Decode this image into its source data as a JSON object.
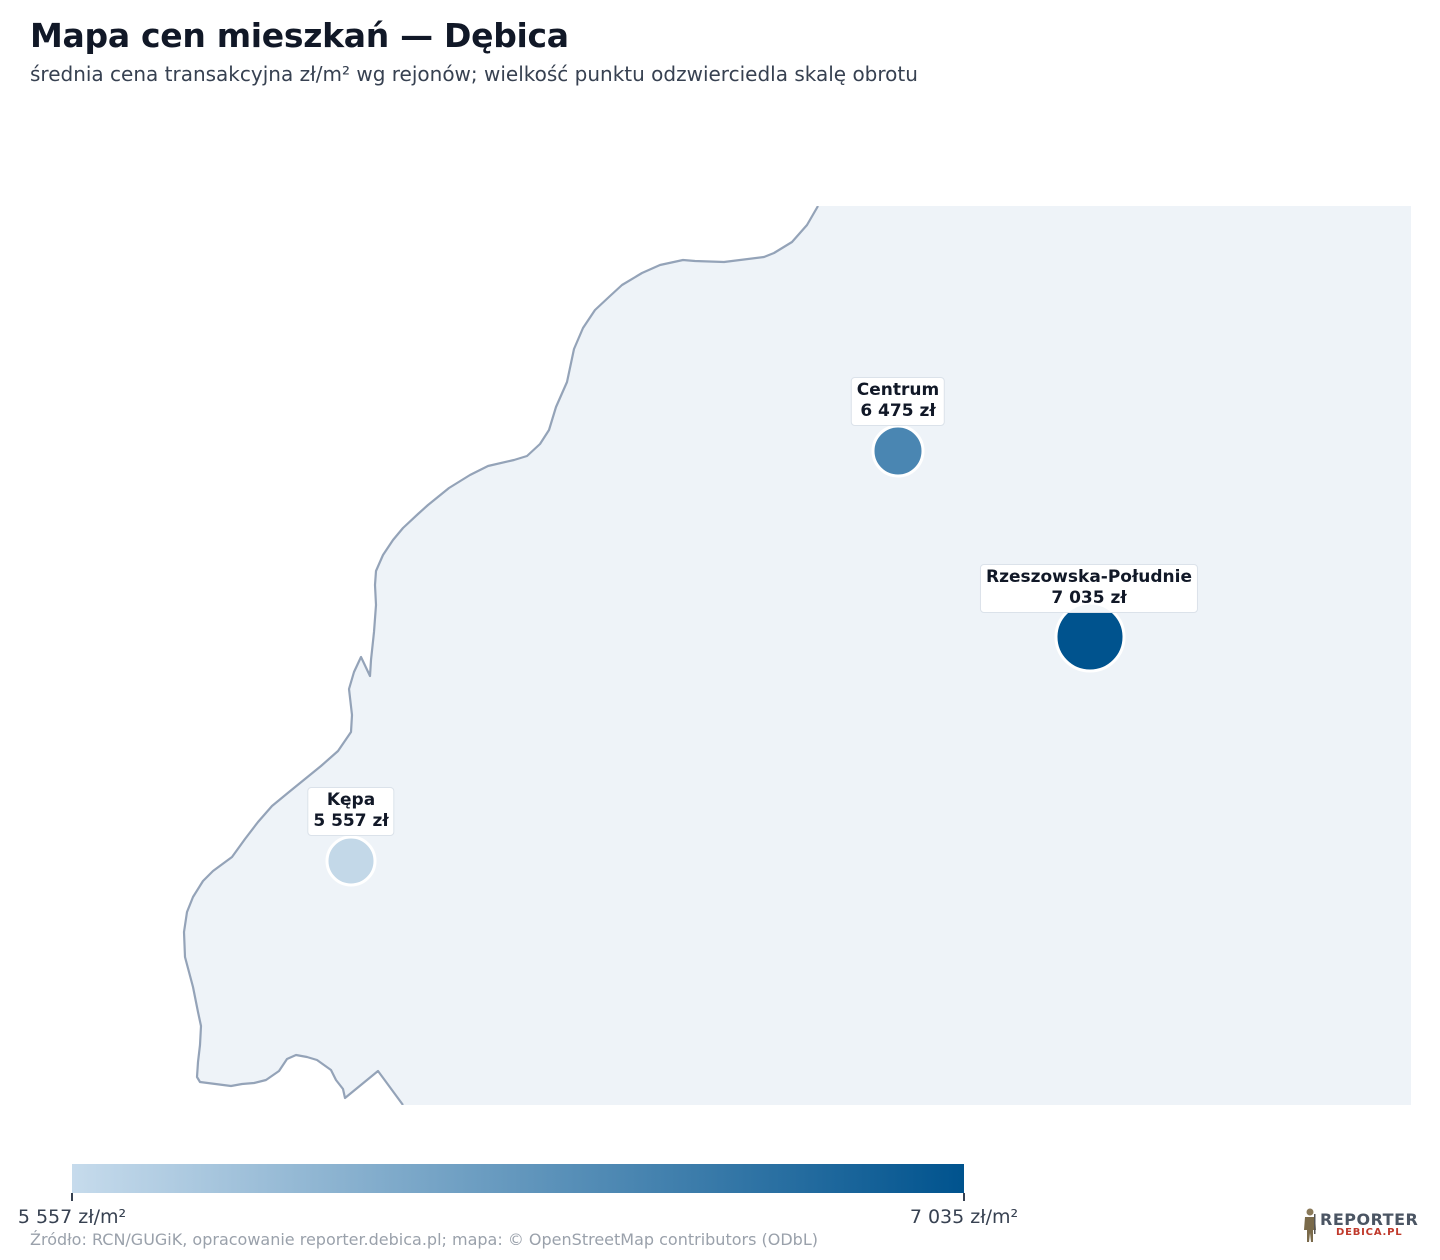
{
  "header": {
    "title": "Mapa cen mieszkań — Dębica",
    "subtitle": "średnia cena transakcyjna zł/m² wg rejonów; wielkość punktu odzwierciedla skalę obrotu"
  },
  "markers": [
    {
      "id": "centrum",
      "name": "Centrum",
      "price_label": "6 475 zł",
      "price": 6475,
      "color": "#4a86b2"
    },
    {
      "id": "rzeszowska",
      "name": "Rzeszowska-Południe",
      "price_label": "7 035 zł",
      "price": 7035,
      "color": "#00538e"
    },
    {
      "id": "kepa",
      "name": "Kępa",
      "price_label": "5 557 zł",
      "price": 5557,
      "color": "#c3d8e8"
    }
  ],
  "legend": {
    "min_label": "5 557 zł/m²",
    "max_label": "7 035 zł/m²",
    "min_value": 5557,
    "max_value": 7035,
    "color_min": "#c6dbec",
    "color_max": "#00538e"
  },
  "map": {
    "land_color": "#eef3f8",
    "border_color": "#94a3b8"
  },
  "footer": {
    "source": "Źródło: RCN/GUGiK, opracowanie reporter.debica.pl; mapa: © OpenStreetMap contributors (ODbL)"
  },
  "logo": {
    "main": "REPORTER",
    "sub": "DEBICA.PL",
    "icon": "soldier-icon"
  }
}
